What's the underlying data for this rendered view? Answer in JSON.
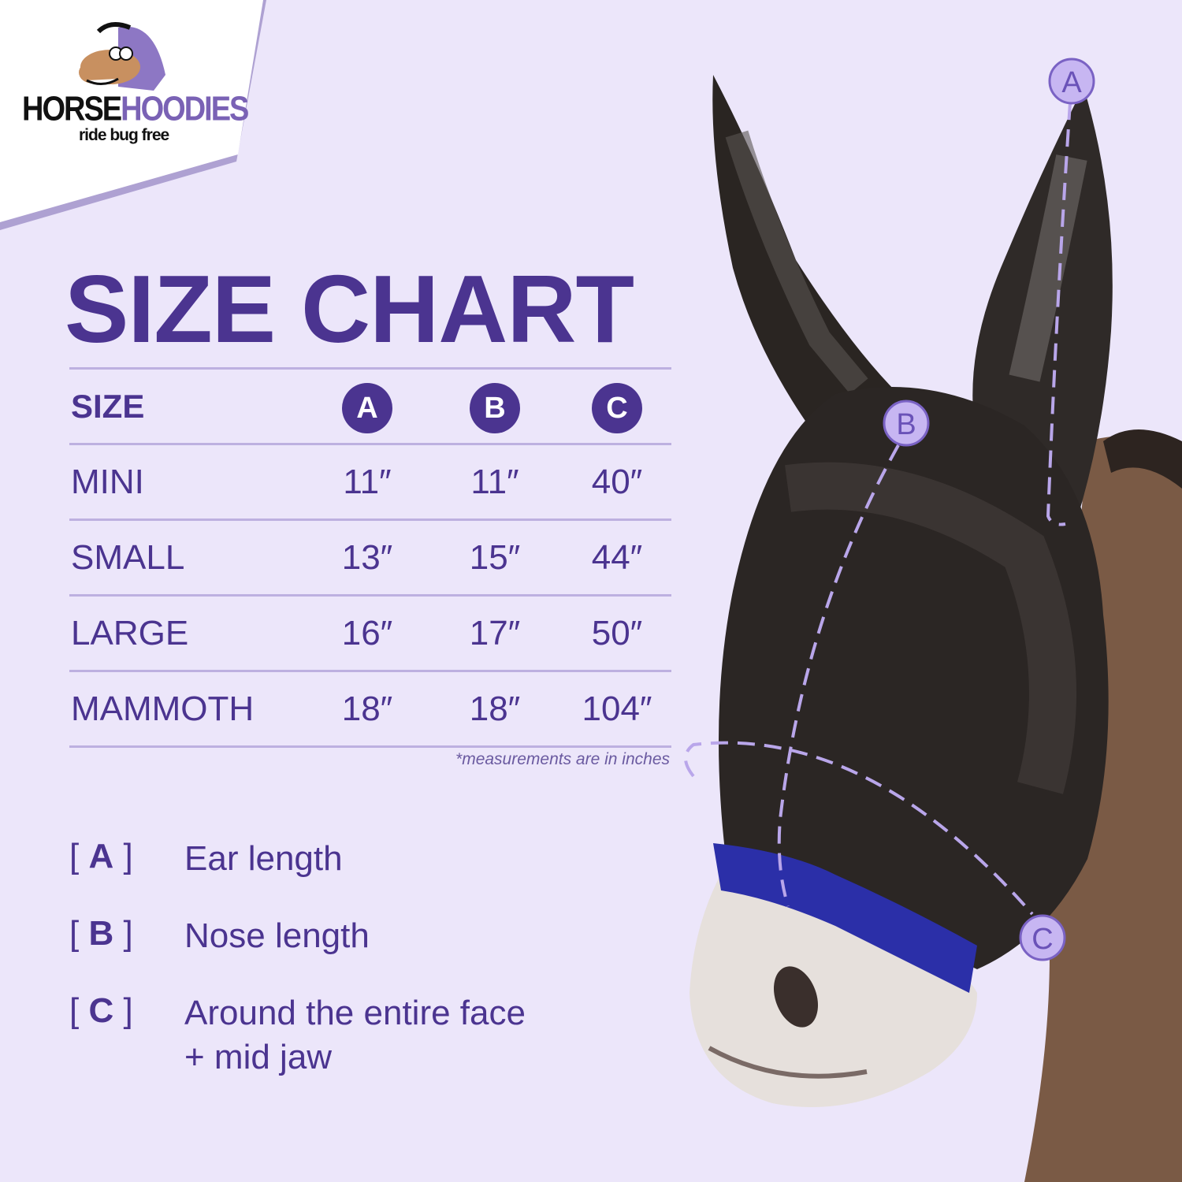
{
  "brand": {
    "name_part1": "HORSE",
    "name_part2": "HOODIES",
    "tagline": "ride bug free"
  },
  "title": "SIZE CHART",
  "table": {
    "header": {
      "size": "SIZE",
      "a": "A",
      "b": "B",
      "c": "C"
    },
    "rows": [
      {
        "size": "MINI",
        "a": "11″",
        "b": "11″",
        "c": "40″"
      },
      {
        "size": "SMALL",
        "a": "13″",
        "b": "15″",
        "c": "44″"
      },
      {
        "size": "LARGE",
        "a": "16″",
        "b": "17″",
        "c": "50″"
      },
      {
        "size": "MAMMOTH",
        "a": "18″",
        "b": "18″",
        "c": "104″"
      }
    ],
    "note": "*measurements are in inches"
  },
  "legend": [
    {
      "key": "A",
      "text": "Ear length"
    },
    {
      "key": "B",
      "text": "Nose length"
    },
    {
      "key": "C",
      "text": "Around the entire face",
      "text2": "+ mid jaw"
    }
  ],
  "diagram_markers": {
    "a": "A",
    "b": "B",
    "c": "C"
  },
  "colors": {
    "accent": "#4b3490",
    "background": "#ece6fa",
    "line": "#bdb0e0",
    "marker": "#b9a6ea"
  }
}
